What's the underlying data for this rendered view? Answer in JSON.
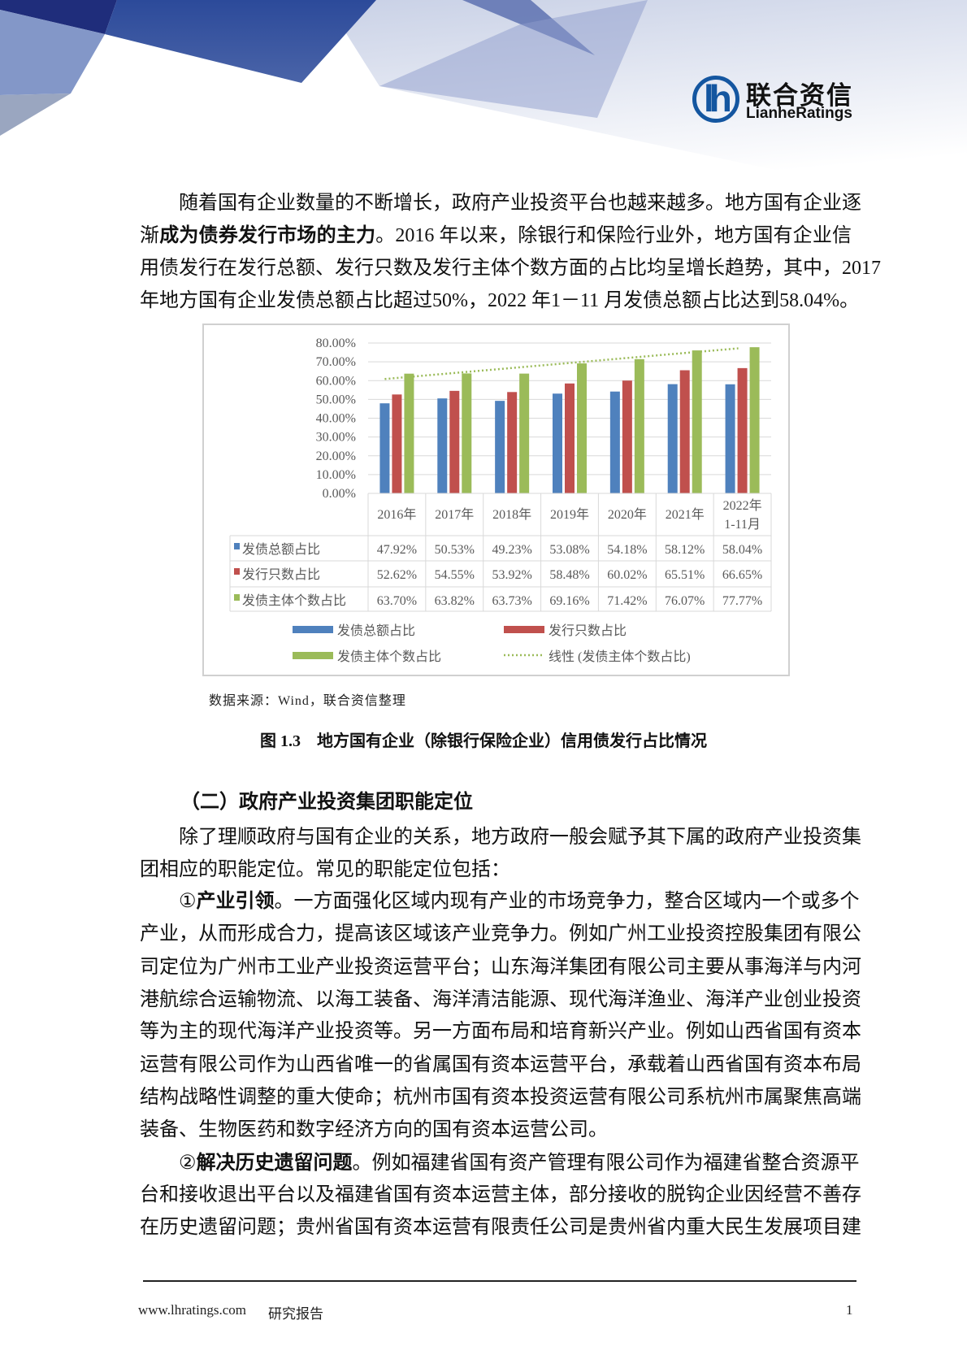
{
  "header": {
    "logo_cn": "联合资信",
    "logo_en": "LianheRatings",
    "brand_color": "#1456a0"
  },
  "paragraphs": [
    {
      "lines": [
        {
          "indent": true,
          "segs": [
            {
              "t": "随着国有企业数量的不断增长，政府产业投资平台也越来越多。地方国有企业逐"
            }
          ]
        },
        {
          "segs": [
            {
              "t": "渐"
            },
            {
              "t": "成为债券发行市场的主力",
              "b": true
            },
            {
              "t": "。2016 年以来，除银行和保险行业外，地方国有企业信"
            }
          ]
        },
        {
          "segs": [
            {
              "t": "用债发行在发行总额、发行只数及发行主体个数方面的占比均呈增长趋势，其中，2017"
            }
          ]
        },
        {
          "segs": [
            {
              "t": "年地方国有企业发债总额占比超过50%，2022 年1－11 月发债总额占比达到58.04%。"
            }
          ]
        }
      ]
    },
    {
      "lines": [
        {
          "indent": true,
          "segs": [
            {
              "t": "除了理顺政府与国有企业的关系，地方政府一般会赋予其下属的政府产业投资集"
            }
          ]
        },
        {
          "last": true,
          "segs": [
            {
              "t": "团相应的职能定位。常见的职能定位包括："
            }
          ]
        }
      ]
    },
    {
      "lines": [
        {
          "indent": true,
          "segs": [
            {
              "t": "①"
            },
            {
              "t": "产业引领",
              "b": true
            },
            {
              "t": "。一方面强化区域内现有产业的市场竞争力，整合区域内一个或多个"
            }
          ]
        },
        {
          "segs": [
            {
              "t": "产业，从而形成合力，提高该区域该产业竞争力。例如广州工业投资控股集团有限公"
            }
          ]
        },
        {
          "segs": [
            {
              "t": "司定位为广州市工业产业投资运营平台；山东海洋集团有限公司主要从事海洋与内河"
            }
          ]
        },
        {
          "segs": [
            {
              "t": "港航综合运输物流、以海工装备、海洋清洁能源、现代海洋渔业、海洋产业创业投资"
            }
          ]
        },
        {
          "segs": [
            {
              "t": "等为主的现代海洋产业投资等。另一方面布局和培育新兴产业。例如山西省国有资本"
            }
          ]
        },
        {
          "segs": [
            {
              "t": "运营有限公司作为山西省唯一的省属国有资本运营平台，承载着山西省国有资本布局"
            }
          ]
        },
        {
          "segs": [
            {
              "t": "结构战略性调整的重大使命；杭州市国有资本投资运营有限公司系杭州市属聚焦高端"
            }
          ]
        },
        {
          "last": true,
          "segs": [
            {
              "t": "装备、生物医药和数字经济方向的国有资本运营公司。"
            }
          ]
        }
      ]
    },
    {
      "lines": [
        {
          "indent": true,
          "segs": [
            {
              "t": "②"
            },
            {
              "t": "解决历史遗留问题",
              "b": true
            },
            {
              "t": "。例如福建省国有资产管理有限公司作为福建省整合资源平"
            }
          ]
        },
        {
          "segs": [
            {
              "t": "台和接收退出平台以及福建省国有资本运营主体，部分接收的脱钩企业因经营不善存"
            }
          ]
        },
        {
          "segs": [
            {
              "t": "在历史遗留问题；贵州省国有资本运营有限责任公司是贵州省内重大民生发展项目建"
            }
          ]
        }
      ]
    }
  ],
  "figure": {
    "source": "数据来源：Wind，联合资信整理",
    "caption": "图 1.3　地方国有企业（除银行保险企业）信用债发行占比情况"
  },
  "section_heading": "（二）政府产业投资集团职能定位",
  "chart_data": {
    "type": "bar",
    "categories": [
      "2016年",
      "2017年",
      "2018年",
      "2019年",
      "2020年",
      "2021年",
      "2022年\n1-11月"
    ],
    "ylim": [
      0,
      80
    ],
    "yticks": [
      "0.00%",
      "10.00%",
      "20.00%",
      "30.00%",
      "40.00%",
      "50.00%",
      "60.00%",
      "70.00%",
      "80.00%"
    ],
    "grid": true,
    "data_table": true,
    "series": [
      {
        "name": "发债总额占比",
        "color": "#4f81bd",
        "values": [
          47.92,
          50.53,
          49.23,
          53.08,
          54.18,
          58.12,
          58.04
        ],
        "labels": [
          "47.92%",
          "50.53%",
          "49.23%",
          "53.08%",
          "54.18%",
          "58.12%",
          "58.04%"
        ]
      },
      {
        "name": "发行只数占比",
        "color": "#c0504d",
        "values": [
          52.62,
          54.55,
          53.92,
          58.48,
          60.02,
          65.51,
          66.65
        ],
        "labels": [
          "52.62%",
          "54.55%",
          "53.92%",
          "58.48%",
          "60.02%",
          "65.51%",
          "66.65%"
        ]
      },
      {
        "name": "发债主体个数占比",
        "color": "#9bbb59",
        "values": [
          63.7,
          63.82,
          63.73,
          69.16,
          71.42,
          76.07,
          77.77
        ],
        "labels": [
          "63.70%",
          "63.82%",
          "63.73%",
          "69.16%",
          "71.42%",
          "76.07%",
          "77.77%"
        ]
      }
    ],
    "trendline": {
      "name": "线性 (发债主体个数占比)",
      "of_series": 2,
      "type": "linear",
      "style": "dotted",
      "color": "#9bbb59"
    },
    "legend_placement": "bottom"
  },
  "footer": {
    "site": "www.lhratings.com",
    "doc_type": "研究报告",
    "page": "1"
  }
}
